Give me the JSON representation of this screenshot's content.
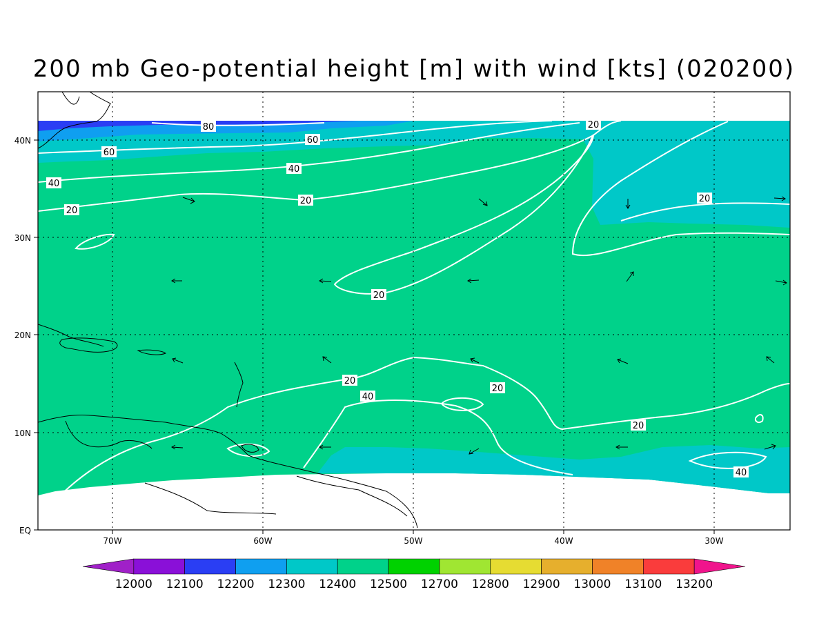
{
  "title": "200 mb Geo-potential height [m] with wind [kts] (020200)",
  "axes": {
    "lon_ticks": [
      "70W",
      "60W",
      "50W",
      "40W",
      "30W"
    ],
    "lat_ticks": [
      "40N",
      "30N",
      "20N",
      "10N",
      "EQ"
    ]
  },
  "contour_labels": [
    "80",
    "60",
    "60",
    "40",
    "40",
    "20",
    "20",
    "20",
    "20",
    "20",
    "20",
    "20",
    "20",
    "40",
    "40"
  ],
  "colorbar": {
    "levels": [
      "12000",
      "12100",
      "12200",
      "12300",
      "12400",
      "12500",
      "12700",
      "12800",
      "12900",
      "13000",
      "13100",
      "13200"
    ],
    "colors": [
      "#a020c8",
      "#8a10d8",
      "#2a3ef4",
      "#0f9ff0",
      "#00c8c8",
      "#00d28a",
      "#00d200",
      "#a0e632",
      "#e6dc32",
      "#e6af2d",
      "#f08228",
      "#fa3c3c",
      "#f0148c"
    ]
  },
  "fill_colors": {
    "h12200": "#2a3ef4",
    "h12300": "#0f9ff0",
    "h12400": "#00c8c8",
    "h12500": "#00d28a"
  }
}
